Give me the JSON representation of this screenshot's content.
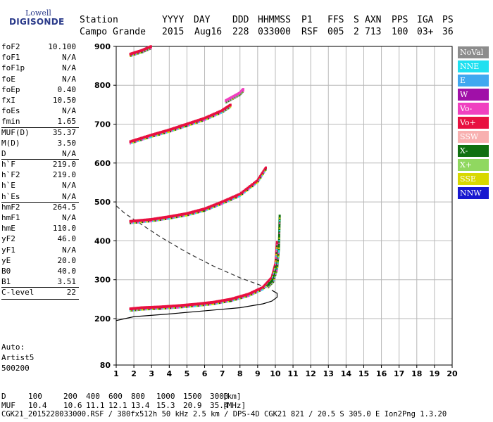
{
  "logo": {
    "line1": "Lowell",
    "line2": "DIGISONDE"
  },
  "header": {
    "labels": [
      "Station",
      "YYYY",
      "DAY",
      "DDD",
      "HHMMSS",
      "P1",
      "FFS",
      "S",
      "AXN",
      "PPS",
      "IGA",
      "PS"
    ],
    "values": [
      "Campo Grande",
      "2015",
      "Aug16",
      "228",
      "033000",
      "RSF",
      "005",
      "2",
      "713",
      "100",
      "03+",
      "36"
    ]
  },
  "params": [
    {
      "k": "foF2",
      "v": "10.100"
    },
    {
      "k": "foF1",
      "v": "N/A"
    },
    {
      "k": "foF1p",
      "v": "N/A"
    },
    {
      "k": "foE",
      "v": "N/A"
    },
    {
      "k": "foEp",
      "v": "0.40"
    },
    {
      "k": "fxI",
      "v": "10.50"
    },
    {
      "k": "foEs",
      "v": "N/A"
    },
    {
      "k": "fmin",
      "v": "1.65"
    },
    {
      "k": "MUF(D)",
      "v": "35.37",
      "sep": true
    },
    {
      "k": "M(D)",
      "v": "3.50"
    },
    {
      "k": "D",
      "v": "N/A"
    },
    {
      "k": "h`F",
      "v": "219.0",
      "sep": true
    },
    {
      "k": "h`F2",
      "v": "219.0"
    },
    {
      "k": "h`E",
      "v": "N/A"
    },
    {
      "k": "h`Es",
      "v": "N/A"
    },
    {
      "k": "hmF2",
      "v": "264.5",
      "sep": true
    },
    {
      "k": "hmF1",
      "v": "N/A"
    },
    {
      "k": "hmE",
      "v": "110.0"
    },
    {
      "k": "yF2",
      "v": "46.0"
    },
    {
      "k": "yF1",
      "v": "N/A"
    },
    {
      "k": "yE",
      "v": "20.0"
    },
    {
      "k": "B0",
      "v": "40.0"
    },
    {
      "k": "B1",
      "v": "3.51"
    },
    {
      "k": "C-level",
      "v": "22",
      "sep": true
    }
  ],
  "auto": {
    "line1": "Auto:",
    "line2": "Artist5",
    "line3": "500200"
  },
  "legend": [
    {
      "label": "NoVal",
      "color": "#8c8c8c"
    },
    {
      "label": "NNE",
      "color": "#20e0f0"
    },
    {
      "label": "E",
      "color": "#40a8f0"
    },
    {
      "label": "W",
      "color": "#a010a8"
    },
    {
      "label": "Vo-",
      "color": "#f040c0"
    },
    {
      "label": "Vo+",
      "color": "#e81040"
    },
    {
      "label": "SSW",
      "color": "#f8b0b0"
    },
    {
      "label": "X-",
      "color": "#107010"
    },
    {
      "label": "X+",
      "color": "#90d860"
    },
    {
      "label": "SSE",
      "color": "#d8d800"
    },
    {
      "label": "NNW",
      "color": "#1818d0"
    }
  ],
  "bottom": {
    "d_label": "D",
    "d_values": [
      "100",
      "200",
      "400",
      "600",
      "800",
      "1000",
      "1500",
      "3000",
      "[km]"
    ],
    "muf_label": "MUF",
    "muf_values": [
      "10.4",
      "10.6",
      "11.1",
      "12.1",
      "13.4",
      "15.3",
      "20.9",
      "35.4",
      "[MHz]"
    ],
    "footer": "CGK21_2015228033000.RSF / 380fx512h 50 kHz 2.5 km / DPS-4D CGK21 821 / 20.5 S 305.0 E Ion2Png 1.3.20"
  },
  "chart_data": {
    "type": "scatter",
    "xlim": [
      1,
      20
    ],
    "ylim": [
      80,
      900
    ],
    "y_scale": "piecewise: 80-200 compressed, 200-900 linear",
    "xticks": [
      1,
      2,
      3,
      4,
      5,
      6,
      7,
      8,
      9,
      10,
      11,
      12,
      13,
      14,
      15,
      16,
      17,
      18,
      19,
      20
    ],
    "yticks": [
      80,
      200,
      300,
      400,
      500,
      600,
      700,
      800,
      900
    ],
    "grid": true,
    "traces": [
      {
        "name": "F2 O-trace",
        "color": "#e81040",
        "x": [
          1.8,
          2.5,
          3.5,
          4.5,
          5.5,
          6.5,
          7.5,
          8.5,
          9.3,
          9.8,
          10.0,
          10.1
        ],
        "y": [
          225,
          228,
          230,
          233,
          237,
          242,
          250,
          263,
          280,
          305,
          340,
          400
        ]
      },
      {
        "name": "F2 X-trace",
        "color": "#107010",
        "x": [
          9.6,
          9.9,
          10.1,
          10.2,
          10.25
        ],
        "y": [
          285,
          300,
          330,
          380,
          470
        ]
      },
      {
        "name": "2nd hop",
        "color": "#e81040",
        "x": [
          1.8,
          3,
          4,
          5,
          6,
          7,
          8,
          9,
          9.5
        ],
        "y": [
          450,
          455,
          462,
          470,
          482,
          500,
          520,
          555,
          590
        ]
      },
      {
        "name": "3rd hop",
        "color": "#e81040",
        "x": [
          1.8,
          3,
          4,
          5,
          6,
          7,
          7.5
        ],
        "y": [
          655,
          672,
          685,
          700,
          715,
          735,
          750
        ]
      },
      {
        "name": "4th hop",
        "color": "#f040c0",
        "x": [
          7.2,
          7.6,
          8.0,
          8.2
        ],
        "y": [
          760,
          770,
          780,
          790
        ]
      },
      {
        "name": "top",
        "color": "#e81040",
        "x": [
          1.8,
          2.5,
          3.0
        ],
        "y": [
          880,
          890,
          900
        ]
      }
    ],
    "profile": {
      "x": [
        1.0,
        2.0,
        4.0,
        6.0,
        8.0,
        9.3,
        9.8,
        10.1,
        10.1,
        9.8
      ],
      "y": [
        195,
        205,
        212,
        220,
        228,
        238,
        245,
        255,
        265,
        273
      ]
    },
    "dashed_curve": {
      "x": [
        1.0,
        1.5,
        2.5,
        3.5,
        5,
        6.5,
        8,
        9.5
      ],
      "y": [
        490,
        470,
        440,
        410,
        370,
        335,
        305,
        280
      ]
    }
  }
}
